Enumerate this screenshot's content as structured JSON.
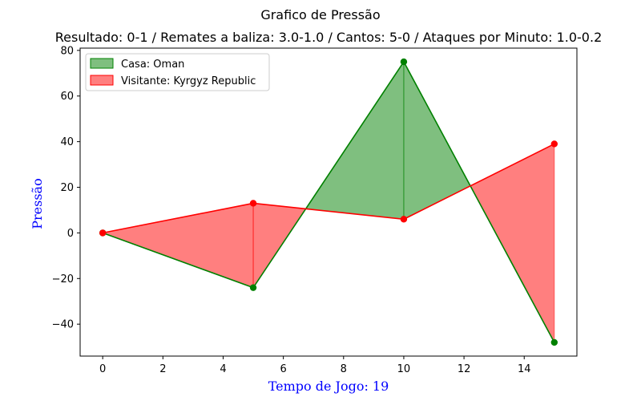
{
  "chart_data": {
    "type": "line",
    "title": "Grafico de Pressão",
    "subtitle": "Resultado: 0-1 / Remates a baliza: 3.0-1.0 / Cantos: 5-0 / Ataques por Minuto: 1.0-0.2",
    "xlabel": "Tempo de Jogo: 19",
    "ylabel": "Pressão",
    "label_color": "#0000ff",
    "x": [
      0,
      5,
      10,
      15
    ],
    "series": [
      {
        "name": "Casa: Oman",
        "values": [
          0,
          -24,
          75,
          -48
        ],
        "color": "#008000",
        "fill": "#008000"
      },
      {
        "name": "Visitante: Kyrgyz Republic",
        "values": [
          0,
          13,
          6,
          39
        ],
        "color": "#ff0000",
        "fill": "#ff0000"
      }
    ],
    "xlim": [
      -0.75,
      15.75
    ],
    "ylim": [
      -54,
      81
    ],
    "xticks": [
      0,
      2,
      4,
      6,
      8,
      10,
      12,
      14
    ],
    "yticks": [
      -40,
      -20,
      0,
      20,
      40,
      60,
      80
    ],
    "legend": "top-left",
    "grid": false
  }
}
